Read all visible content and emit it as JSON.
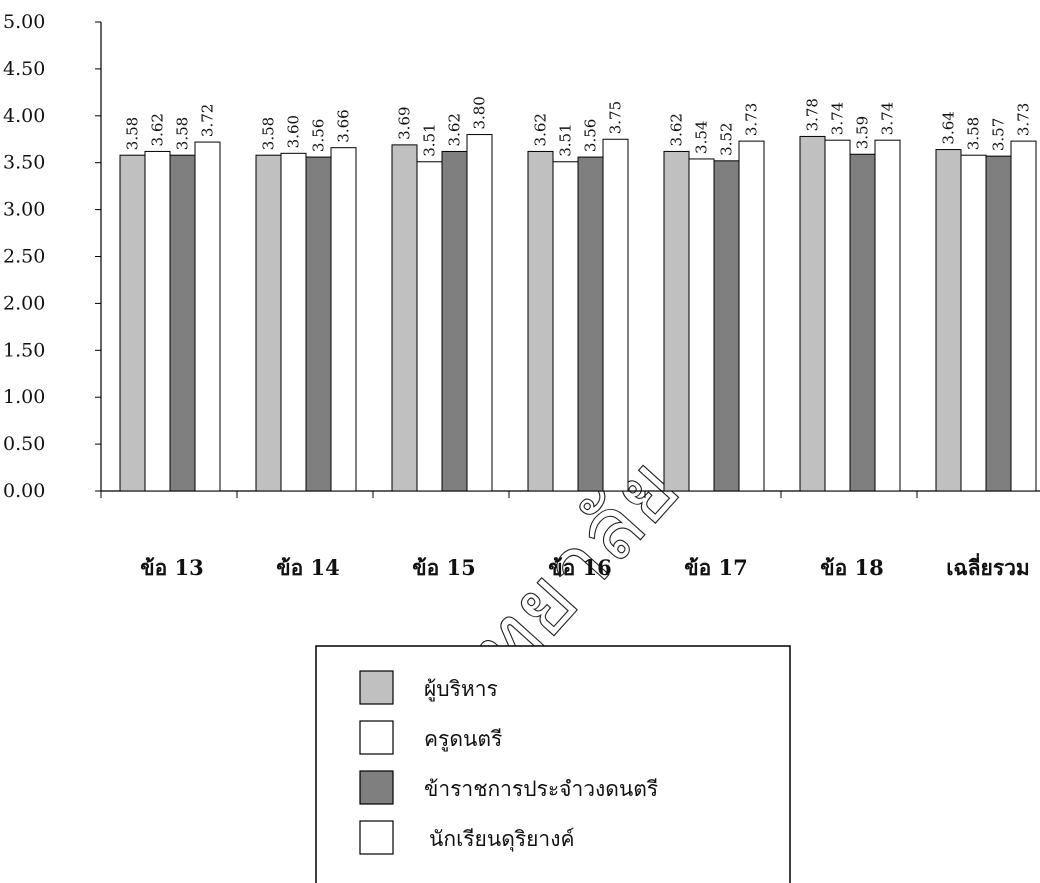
{
  "chart_data": {
    "type": "bar",
    "categories": [
      "ข้อ 13",
      "ข้อ 14",
      "ข้อ 15",
      "ข้อ 16",
      "ข้อ 17",
      "ข้อ 18",
      "เฉลี่ยรวม"
    ],
    "series": [
      {
        "name": "ผู้บริหาร",
        "values": [
          3.58,
          3.58,
          3.69,
          3.62,
          3.62,
          3.78,
          3.64
        ],
        "color": "#c0c0c0"
      },
      {
        "name": "ครูดนตรี",
        "values": [
          3.62,
          3.6,
          3.51,
          3.51,
          3.54,
          3.74,
          3.58
        ],
        "color": "#ffffff"
      },
      {
        "name": "ข้าราชการประจำวงดนตรี",
        "values": [
          3.58,
          3.56,
          3.62,
          3.56,
          3.52,
          3.59,
          3.57
        ],
        "color": "#7f7f7f"
      },
      {
        "name": "นักเรียนดุริยางค์",
        "values": [
          3.72,
          3.66,
          3.8,
          3.75,
          3.73,
          3.74,
          3.73
        ],
        "color": "#ffffff"
      }
    ],
    "yticks": [
      "0.00",
      "0.50",
      "1.00",
      "1.50",
      "2.00",
      "2.50",
      "3.00",
      "3.50",
      "4.00",
      "4.50",
      "5.00"
    ],
    "ylim": [
      0,
      5
    ],
    "data_labels": [
      [
        "3.58",
        "3.62",
        "3.58",
        "3.72"
      ],
      [
        "3.58",
        "3.60",
        "3.56",
        "3.66"
      ],
      [
        "3.69",
        "3.51",
        "3.62",
        "3.80"
      ],
      [
        "3.62",
        "3.51",
        "3.56",
        "3.75"
      ],
      [
        "3.62",
        "3.54",
        "3.52",
        "3.73"
      ],
      [
        "3.78",
        "3.74",
        "3.59",
        "3.74"
      ],
      [
        "3.64",
        "3.58",
        "3.57",
        "3.73"
      ]
    ],
    "grid": false,
    "legend_position": "bottom-center"
  },
  "watermark": "มหาวิทยาลัย"
}
